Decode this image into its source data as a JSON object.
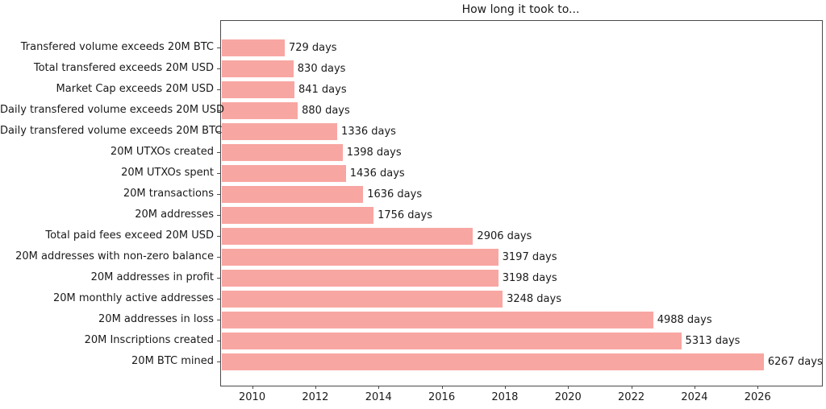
{
  "chart_data": {
    "type": "bar",
    "orientation": "horizontal",
    "title": "How long it took to...",
    "categories": [
      "Transfered volume exceeds 20M BTC",
      "Total transfered exceeds 20M USD",
      "Market Cap exceeds 20M USD",
      "Daily transfered volume exceeds 20M USD",
      "Daily transfered volume exceeds 20M BTC",
      "20M UTXOs created",
      "20M UTXOs spent",
      "20M transactions",
      "20M addresses",
      "Total paid fees exceed 20M USD",
      "20M addresses with non-zero balance",
      "20M addresses in profit",
      "20M monthly active addresses",
      "20M addresses in loss",
      "20M Inscriptions created",
      "20M BTC mined"
    ],
    "values": [
      729,
      830,
      841,
      880,
      1336,
      1398,
      1436,
      1636,
      1756,
      2906,
      3197,
      3198,
      3248,
      4988,
      5313,
      6267
    ],
    "bar_labels": [
      "729 days",
      "830 days",
      "841 days",
      "880 days",
      "1336 days",
      "1398 days",
      "1436 days",
      "1636 days",
      "1756 days",
      "2906 days",
      "3197 days",
      "3198 days",
      "3248 days",
      "4988 days",
      "5313 days",
      "6267 days"
    ],
    "value_unit": "days",
    "xlabel": "",
    "ylabel": "",
    "xtick_years": [
      2010,
      2012,
      2014,
      2016,
      2018,
      2020,
      2022,
      2024,
      2026
    ],
    "xlim_years": [
      2008.99,
      2028.01
    ],
    "bars_start_year": 2009.01,
    "days_per_year": 365.25,
    "grid": false,
    "legend": null,
    "colors": {
      "bar_fill": "#f8a6a2",
      "text": "#1a1a1a",
      "axis": "#4a4a4a",
      "background": "#ffffff"
    }
  }
}
